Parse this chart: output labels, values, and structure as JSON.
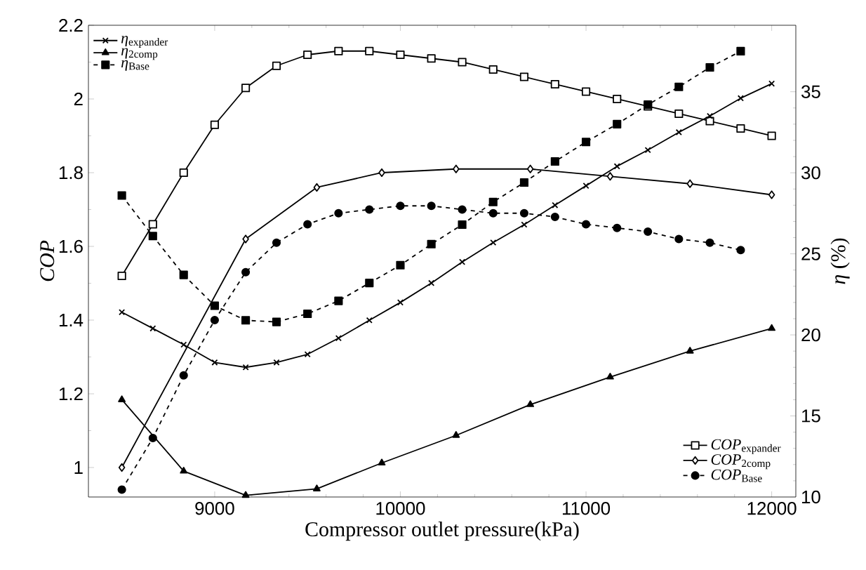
{
  "chart_data": {
    "type": "line",
    "xlabel": "Compressor outlet pressure(kPa)",
    "ylabel": "COP",
    "y2label": "*η* (%)",
    "xlim": [
      8320,
      12130
    ],
    "xticks": [
      9000,
      10000,
      11000,
      12000
    ],
    "ylim": [
      0.92,
      2.2
    ],
    "yticks": [
      1,
      1.2,
      1.4,
      1.6,
      1.8,
      2,
      2.2
    ],
    "y2lim": [
      10,
      39.1
    ],
    "y2ticks": [
      10,
      15,
      20,
      25,
      30,
      35
    ],
    "legend": [
      "bottom right",
      "top left"
    ],
    "grid": false,
    "series": [
      {
        "name": "*COP*$_{expander}$",
        "color": "#000000",
        "marker": "square",
        "line_style": "solid",
        "x": [
          8500,
          8667,
          8833,
          9000,
          9167,
          9333,
          9500,
          9667,
          9833,
          10000,
          10167,
          10333,
          10500,
          10667,
          10833,
          11000,
          11167,
          11333,
          11500,
          11667,
          11833,
          12000
        ],
        "values": [
          1.52,
          1.66,
          1.8,
          1.93,
          2.03,
          2.09,
          2.12,
          2.13,
          2.13,
          2.12,
          2.11,
          2.1,
          2.08,
          2.06,
          2.04,
          2.02,
          2.0,
          1.98,
          1.96,
          1.94,
          1.92,
          1.9
        ]
      },
      {
        "name": "*COP*$_{2comp}$",
        "color": "#000000",
        "marker": "diamond",
        "line_style": "solid",
        "x": [
          8500,
          9167,
          9550,
          9900,
          10300,
          10700,
          11130,
          11560,
          12000
        ],
        "values": [
          1.0,
          1.62,
          1.76,
          1.8,
          1.81,
          1.81,
          1.79,
          1.77,
          1.74
        ]
      },
      {
        "name": "*COP*$_{Base}$",
        "color": "#000000",
        "marker": "circle",
        "line_style": "dashed",
        "x": [
          8500,
          8667,
          8833,
          9000,
          9167,
          9333,
          9500,
          9667,
          9833,
          10000,
          10167,
          10333,
          10500,
          10667,
          10833,
          11000,
          11167,
          11333,
          11500,
          11667,
          11833
        ],
        "values": [
          0.94,
          1.08,
          1.25,
          1.4,
          1.53,
          1.61,
          1.66,
          1.69,
          1.7,
          1.71,
          1.71,
          1.7,
          1.69,
          1.69,
          1.68,
          1.66,
          1.65,
          1.64,
          1.62,
          1.61,
          1.59
        ]
      },
      {
        "name": "*η*$_{expander}$",
        "axis": "y2",
        "color": "#000000",
        "marker": "cross",
        "line_style": "solid",
        "x": [
          8500,
          8667,
          8833,
          9000,
          9167,
          9333,
          9500,
          9667,
          9833,
          10000,
          10167,
          10333,
          10500,
          10667,
          10833,
          11000,
          11167,
          11333,
          11500,
          11667,
          11833,
          12000
        ],
        "values": [
          21.4,
          20.4,
          19.4,
          18.3,
          18.0,
          18.3,
          18.8,
          19.8,
          20.9,
          22.0,
          23.2,
          24.5,
          25.7,
          26.8,
          28.0,
          29.2,
          30.4,
          31.4,
          32.5,
          33.5,
          34.6,
          35.5
        ]
      },
      {
        "name": "*η*$_{2comp}$",
        "axis": "y2",
        "color": "#000000",
        "marker": "triangle",
        "line_style": "solid",
        "x": [
          8500,
          8833,
          9167,
          9550,
          9900,
          10300,
          10700,
          11130,
          11560,
          12000
        ],
        "values": [
          16.0,
          11.6,
          10.1,
          10.5,
          12.1,
          13.8,
          15.7,
          17.4,
          19.0,
          20.4
        ]
      },
      {
        "name": "*η*$_{Base}$",
        "axis": "y2",
        "color": "#000000",
        "marker": "square",
        "line_style": "dashed",
        "x": [
          8500,
          8667,
          8833,
          9000,
          9167,
          9333,
          9500,
          9667,
          9833,
          10000,
          10167,
          10333,
          10500,
          10667,
          10833,
          11000,
          11167,
          11333,
          11500,
          11667,
          11833
        ],
        "values": [
          28.6,
          26.1,
          23.7,
          21.8,
          20.9,
          20.8,
          21.3,
          22.1,
          23.2,
          24.3,
          25.6,
          26.8,
          28.2,
          29.4,
          30.7,
          31.9,
          33.0,
          34.2,
          35.3,
          36.5,
          37.5
        ]
      }
    ]
  }
}
